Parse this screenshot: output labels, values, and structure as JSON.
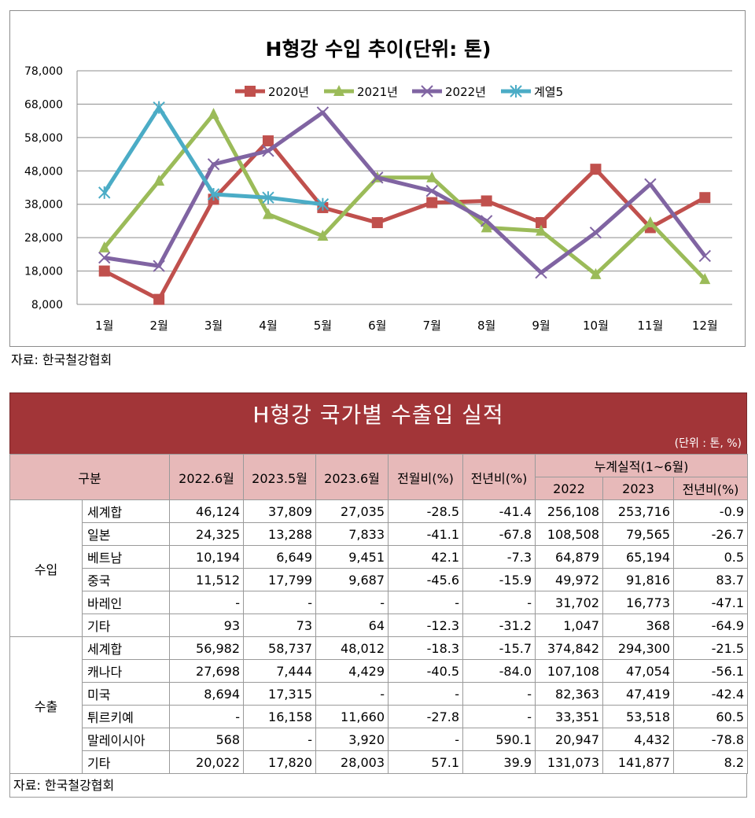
{
  "chart_data": {
    "type": "line",
    "title": "H형강 수입 추이(단위: 톤)",
    "categories": [
      "1월",
      "2월",
      "3월",
      "4월",
      "5월",
      "6월",
      "7월",
      "8월",
      "9월",
      "10월",
      "11월",
      "12월"
    ],
    "ylim": [
      8000,
      78000
    ],
    "yticks": [
      "8,000",
      "18,000",
      "28,000",
      "38,000",
      "48,000",
      "58,000",
      "68,000",
      "78,000"
    ],
    "grid": true,
    "legend": "top",
    "series": [
      {
        "name": "2020년",
        "color": "#c0504d",
        "marker": "square",
        "values": [
          18000,
          9500,
          39500,
          57000,
          37000,
          32500,
          38500,
          39000,
          32500,
          48500,
          31000,
          40000
        ]
      },
      {
        "name": "2021년",
        "color": "#9bbb59",
        "marker": "triangle",
        "values": [
          25000,
          45000,
          65000,
          35000,
          28500,
          46000,
          46000,
          31000,
          30000,
          17000,
          32500,
          15500
        ]
      },
      {
        "name": "2022년",
        "color": "#8064a2",
        "marker": "x",
        "values": [
          22000,
          19500,
          50000,
          54000,
          65500,
          46000,
          42000,
          33000,
          17500,
          29500,
          44000,
          22500
        ]
      },
      {
        "name": "계열5",
        "color": "#4bacc6",
        "marker": "asterisk",
        "values": [
          41500,
          67000,
          41000,
          40000,
          38000,
          null,
          null,
          null,
          null,
          null,
          null,
          null
        ]
      }
    ]
  },
  "chart_source": "자료: 한국철강협회",
  "table": {
    "title": "H형강 국가별 수출입 실적",
    "unit": "(단위 : 톤, %)",
    "headers": {
      "category": "구분",
      "c1": "2022.6월",
      "c2": "2023.5월",
      "c3": "2023.6월",
      "c4": "전월비(%)",
      "c5": "전년비(%)",
      "cumulative": "누계실적(1~6월)",
      "cum1": "2022",
      "cum2": "2023",
      "cum3": "전년비(%)"
    },
    "groups": [
      {
        "label": "수입",
        "rows": [
          [
            "세계합",
            "46,124",
            "37,809",
            "27,035",
            "-28.5",
            "-41.4",
            "256,108",
            "253,716",
            "-0.9"
          ],
          [
            "일본",
            "24,325",
            "13,288",
            "7,833",
            "-41.1",
            "-67.8",
            "108,508",
            "79,565",
            "-26.7"
          ],
          [
            "베트남",
            "10,194",
            "6,649",
            "9,451",
            "42.1",
            "-7.3",
            "64,879",
            "65,194",
            "0.5"
          ],
          [
            "중국",
            "11,512",
            "17,799",
            "9,687",
            "-45.6",
            "-15.9",
            "49,972",
            "91,816",
            "83.7"
          ],
          [
            "바레인",
            "-",
            "-",
            "-",
            "-",
            "-",
            "31,702",
            "16,773",
            "-47.1"
          ],
          [
            "기타",
            "93",
            "73",
            "64",
            "-12.3",
            "-31.2",
            "1,047",
            "368",
            "-64.9"
          ]
        ]
      },
      {
        "label": "수출",
        "rows": [
          [
            "세계합",
            "56,982",
            "58,737",
            "48,012",
            "-18.3",
            "-15.7",
            "374,842",
            "294,300",
            "-21.5"
          ],
          [
            "캐나다",
            "27,698",
            "7,444",
            "4,429",
            "-40.5",
            "-84.0",
            "107,108",
            "47,054",
            "-56.1"
          ],
          [
            "미국",
            "8,694",
            "17,315",
            "-",
            "-",
            "-",
            "82,363",
            "47,419",
            "-42.4"
          ],
          [
            "튀르키예",
            "-",
            "16,158",
            "11,660",
            "-27.8",
            "-",
            "33,351",
            "53,518",
            "60.5"
          ],
          [
            "말레이시아",
            "568",
            "-",
            "3,920",
            "-",
            "590.1",
            "20,947",
            "4,432",
            "-78.8"
          ],
          [
            "기타",
            "20,022",
            "17,820",
            "28,003",
            "57.1",
            "39.9",
            "131,073",
            "141,877",
            "8.2"
          ]
        ]
      }
    ],
    "source": "자료: 한국철강협회"
  }
}
